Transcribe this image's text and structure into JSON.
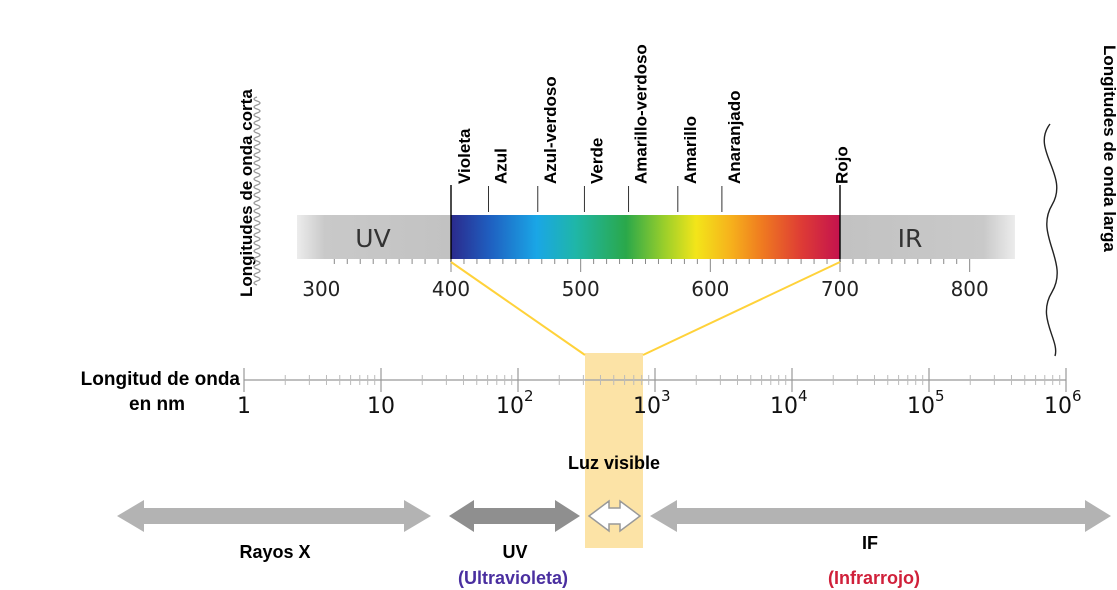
{
  "left_side_label": "Longitudes de onda corta",
  "right_side_label": "Longitudes de onda larga",
  "colors": {
    "names": [
      "Violeta",
      "Azul",
      "Azul-verdoso",
      "Verde",
      "Amarillo-verdoso",
      "Amarillo",
      "Anaranjado",
      "Rojo"
    ],
    "name_wavelengths_nm": [
      404,
      432,
      470,
      506,
      540,
      578,
      612,
      695
    ]
  },
  "nm_scale": {
    "ticks": [
      "300",
      "400",
      "500",
      "600",
      "700",
      "800"
    ],
    "uv_label": "UV",
    "ir_label": "IR",
    "visible_range_nm": [
      400,
      700
    ]
  },
  "log_scale": {
    "axis_label_line1": "Longitud de onda",
    "axis_label_line2": "en nm",
    "tick_bases": [
      "1",
      "10",
      "10",
      "10",
      "10",
      "10",
      "10"
    ],
    "tick_exponents": [
      "",
      "",
      "2",
      "3",
      "4",
      "5",
      "6"
    ]
  },
  "visible_label": "Luz visible",
  "ranges": {
    "xray": "Rayos X",
    "uv": "UV",
    "uv_sub": "(Ultravioleta)",
    "ir": "IF",
    "ir_sub": "(Infrarrojo)"
  },
  "palette": {
    "highlight": "#fce3a6",
    "highlight_line": "#ffd23a",
    "uv_sub_color": "#4a2fa0",
    "ir_sub_color": "#d0203a",
    "grey_band": "#c7c7c7",
    "arrow_grey": "#b0b0b0"
  }
}
